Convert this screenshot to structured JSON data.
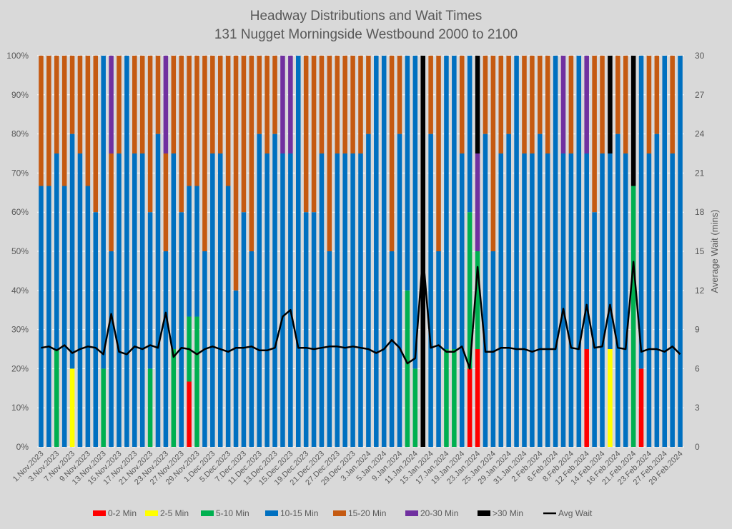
{
  "chart_data": {
    "type": "bar",
    "stacked": true,
    "percent_stacked": true,
    "title": "Headway Distributions and Wait Times",
    "subtitle": "131 Nugget  Morningside Westbound 2000 to 2100",
    "xlabel": "",
    "ylabel": "",
    "y2label": "Average Wait (mins)",
    "ylim": [
      0,
      100
    ],
    "y2lim": [
      0,
      30
    ],
    "yticks": [
      "0%",
      "10%",
      "20%",
      "30%",
      "40%",
      "50%",
      "60%",
      "70%",
      "80%",
      "90%",
      "100%"
    ],
    "y2ticks": [
      "0",
      "3",
      "6",
      "9",
      "12",
      "15",
      "18",
      "21",
      "24",
      "27",
      "30"
    ],
    "grid": true,
    "legend_position": "bottom",
    "categories": [
      "1.Nov.2023",
      "",
      "3.Nov.2023",
      "",
      "7.Nov.2023",
      "",
      "9.Nov.2023",
      "",
      "13.Nov.2023",
      "",
      "15.Nov.2023",
      "",
      "17.Nov.2023",
      "",
      "21.Nov.2023",
      "",
      "23.Nov.2023",
      "",
      "27.Nov.2023",
      "",
      "29.Nov.2023",
      "",
      "1.Dec.2023",
      "",
      "5.Dec.2023",
      "",
      "7.Dec.2023",
      "",
      "11.Dec.2023",
      "",
      "13.Dec.2023",
      "",
      "15.Dec.2023",
      "",
      "19.Dec.2023",
      "",
      "21.Dec.2023",
      "",
      "27.Dec.2023",
      "",
      "29.Dec.2023",
      "",
      "3.Jan.2024",
      "",
      "5.Jan.2024",
      "",
      "9.Jan.2024",
      "",
      "11.Jan.2024",
      "",
      "15.Jan.2024",
      "",
      "17.Jan.2024",
      "",
      "19.Jan.2024",
      "",
      "23.Jan.2024",
      "",
      "25.Jan.2024",
      "",
      "29.Jan.2024",
      "",
      "31.Jan.2024",
      "",
      "2.Feb.2024",
      "",
      "6.Feb.2024",
      "",
      "8.Feb.2024",
      "",
      "12.Feb.2024",
      "",
      "14.Feb.2024",
      "",
      "16.Feb.2024",
      "",
      "21.Feb.2024",
      "",
      "23.Feb.2024",
      "",
      "27.Feb.2024",
      "",
      "29.Feb.2024"
    ],
    "series": [
      {
        "name": "0-2 Min",
        "color": "#ff0000",
        "values": [
          0,
          0,
          0,
          0,
          0,
          0,
          0,
          0,
          0,
          0,
          0,
          0,
          0,
          0,
          0,
          0,
          0,
          0,
          0,
          16.7,
          0,
          0,
          0,
          0,
          0,
          0,
          0,
          0,
          0,
          0,
          0,
          0,
          0,
          0,
          0,
          0,
          0,
          0,
          0,
          0,
          0,
          0,
          0,
          0,
          0,
          0,
          0,
          0,
          0,
          0,
          0,
          0,
          0,
          0,
          0,
          20,
          25,
          0,
          0,
          0,
          0,
          0,
          0,
          0,
          0,
          0,
          0,
          0,
          0,
          0,
          25,
          0,
          0,
          0,
          0,
          0,
          0,
          20,
          0,
          0,
          0,
          0,
          0
        ]
      },
      {
        "name": "2-5 Min",
        "color": "#ffff00",
        "values": [
          0,
          0,
          0,
          0,
          20,
          0,
          0,
          0,
          0,
          0,
          0,
          0,
          0,
          0,
          0,
          0,
          0,
          0,
          0,
          0,
          0,
          0,
          0,
          0,
          0,
          0,
          0,
          0,
          0,
          0,
          0,
          0,
          0,
          0,
          0,
          0,
          0,
          0,
          0,
          0,
          0,
          0,
          0,
          0,
          0,
          0,
          0,
          0,
          0,
          0,
          0,
          0,
          0,
          0,
          0,
          0,
          0,
          0,
          0,
          0,
          0,
          0,
          0,
          0,
          0,
          0,
          0,
          0,
          0,
          0,
          0,
          0,
          0,
          25,
          0,
          0,
          0,
          0,
          0,
          0,
          0,
          0,
          0
        ]
      },
      {
        "name": "5-10 Min",
        "color": "#00b050",
        "values": [
          0,
          0,
          25,
          0,
          0,
          0,
          0,
          0,
          20,
          0,
          0,
          0,
          0,
          0,
          20,
          0,
          0,
          25,
          0,
          16.6,
          33.3,
          0,
          0,
          0,
          0,
          0,
          0,
          0,
          0,
          0,
          0,
          0,
          0,
          0,
          0,
          0,
          0,
          0,
          0,
          0,
          0,
          0,
          0,
          0,
          0,
          0,
          0,
          40,
          20,
          0,
          0,
          0,
          25,
          25,
          0,
          40,
          25,
          0,
          0,
          0,
          0,
          0,
          0,
          0,
          0,
          0,
          0,
          0,
          0,
          0,
          0,
          0,
          0,
          0,
          0,
          0,
          66.7,
          0,
          0,
          0,
          0,
          0,
          0
        ]
      },
      {
        "name": "10-15 Min",
        "color": "#0070c0",
        "values": [
          66.7,
          66.7,
          50,
          66.7,
          60,
          75,
          66.7,
          60,
          80,
          50,
          75,
          100,
          75,
          75,
          40,
          80,
          50,
          50,
          60,
          33.4,
          33.4,
          50,
          75,
          75,
          66.7,
          40,
          60,
          50,
          80,
          75,
          80,
          75,
          75,
          100,
          60,
          60,
          75,
          50,
          75,
          75,
          75,
          75,
          80,
          100,
          100,
          50,
          80,
          60,
          80,
          0,
          80,
          50,
          75,
          75,
          75,
          40,
          0,
          80,
          50,
          75,
          80,
          100,
          75,
          75,
          80,
          75,
          100,
          75,
          75,
          100,
          50,
          60,
          75,
          50,
          80,
          75,
          0,
          80,
          75,
          80,
          100,
          75,
          100
        ]
      },
      {
        "name": "15-20 Min",
        "color": "#c55a11",
        "values": [
          33.3,
          33.3,
          25,
          33.3,
          20,
          25,
          33.3,
          40,
          0,
          25,
          25,
          0,
          25,
          25,
          40,
          20,
          25,
          25,
          40,
          33.3,
          33.3,
          50,
          25,
          25,
          33.3,
          60,
          40,
          50,
          20,
          25,
          20,
          0,
          0,
          0,
          40,
          40,
          25,
          50,
          25,
          25,
          25,
          25,
          20,
          0,
          0,
          50,
          20,
          0,
          0,
          0,
          20,
          50,
          0,
          0,
          25,
          0,
          0,
          20,
          50,
          25,
          20,
          0,
          25,
          25,
          20,
          25,
          0,
          0,
          25,
          0,
          0,
          40,
          25,
          0,
          20,
          25,
          0,
          0,
          25,
          20,
          0,
          25,
          0
        ]
      },
      {
        "name": "20-30 Min",
        "color": "#7030a0",
        "values": [
          0,
          0,
          0,
          0,
          0,
          0,
          0,
          0,
          0,
          25,
          0,
          0,
          0,
          0,
          0,
          0,
          25,
          0,
          0,
          0,
          0,
          0,
          0,
          0,
          0,
          0,
          0,
          0,
          0,
          0,
          0,
          25,
          25,
          0,
          0,
          0,
          0,
          0,
          0,
          0,
          0,
          0,
          0,
          0,
          0,
          0,
          0,
          0,
          0,
          0,
          0,
          0,
          0,
          0,
          0,
          0,
          25,
          0,
          0,
          0,
          0,
          0,
          0,
          0,
          0,
          0,
          0,
          25,
          0,
          0,
          25,
          0,
          0,
          0,
          0,
          0,
          0,
          0,
          0,
          0,
          0,
          0,
          0
        ]
      },
      {
        "name": ">30 Min",
        "color": "#000000",
        "values": [
          0,
          0,
          0,
          0,
          0,
          0,
          0,
          0,
          0,
          0,
          0,
          0,
          0,
          0,
          0,
          0,
          0,
          0,
          0,
          0,
          0,
          0,
          0,
          0,
          0,
          0,
          0,
          0,
          0,
          0,
          0,
          0,
          0,
          0,
          0,
          0,
          0,
          0,
          0,
          0,
          0,
          0,
          0,
          0,
          0,
          0,
          0,
          0,
          0,
          100,
          0,
          0,
          0,
          0,
          0,
          0,
          25,
          0,
          0,
          0,
          0,
          0,
          0,
          0,
          0,
          0,
          0,
          0,
          0,
          0,
          0,
          0,
          0,
          25,
          0,
          0,
          33.3,
          0,
          0,
          0,
          0,
          0,
          0
        ]
      }
    ],
    "line_series": {
      "name": "Avg Wait",
      "color": "#000000",
      "axis": "right",
      "values": [
        7.6,
        7.7,
        7.4,
        7.8,
        7.2,
        7.5,
        7.7,
        7.6,
        7.1,
        10.2,
        7.3,
        7.1,
        7.7,
        7.5,
        7.8,
        7.6,
        10.3,
        6.9,
        7.6,
        7.5,
        7.1,
        7.5,
        7.7,
        7.5,
        7.3,
        7.6,
        7.6,
        7.7,
        7.4,
        7.4,
        7.6,
        10.0,
        10.5,
        7.6,
        7.6,
        7.5,
        7.6,
        7.7,
        7.7,
        7.6,
        7.7,
        7.6,
        7.5,
        7.2,
        7.5,
        8.2,
        7.6,
        6.4,
        6.8,
        14.7,
        7.6,
        7.8,
        7.3,
        7.3,
        7.7,
        6.0,
        13.8,
        7.3,
        7.3,
        7.6,
        7.6,
        7.5,
        7.5,
        7.3,
        7.5,
        7.5,
        7.5,
        10.6,
        7.6,
        7.5,
        10.9,
        7.6,
        7.7,
        10.9,
        7.6,
        7.5,
        14.2,
        7.3,
        7.5,
        7.5,
        7.3,
        7.7,
        7.1
      ]
    }
  }
}
